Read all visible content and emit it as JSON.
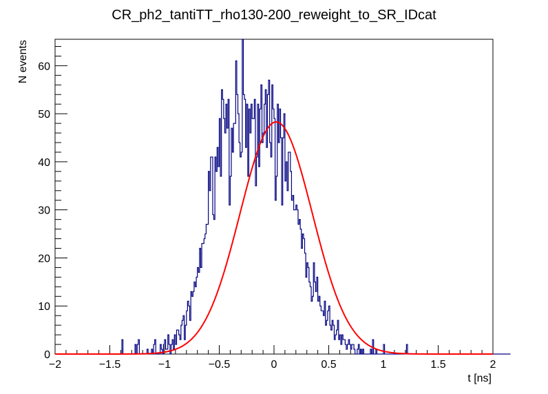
{
  "chart_data": {
    "type": "histogram",
    "title": "CR_ph2_tantiTT_rho130-200_reweight_to_SR_IDcat",
    "xlabel": "t [ns]",
    "ylabel": "N events",
    "xlim": [
      -2,
      2
    ],
    "ylim": [
      0,
      65.5
    ],
    "x_ticks": [
      "−2",
      "−1.5",
      "−1",
      "−0.5",
      "0",
      "0.5",
      "1",
      "1.5",
      "2"
    ],
    "y_ticks": [
      "0",
      "10",
      "20",
      "30",
      "40",
      "50",
      "60"
    ],
    "x_tick_values": [
      -2,
      -1.5,
      -1,
      -0.5,
      0,
      0.5,
      1,
      1.5,
      2
    ],
    "y_tick_values": [
      0,
      10,
      20,
      30,
      40,
      50,
      60
    ],
    "bin_width": 0.01,
    "series": [
      {
        "name": "histogram",
        "color": "#000080",
        "bin_start": -2.0,
        "values": [
          0,
          0,
          0,
          0,
          0,
          0,
          0,
          0,
          0,
          0,
          0,
          0,
          0,
          0,
          0,
          0,
          0,
          0,
          0,
          0,
          0,
          0,
          0,
          0,
          0,
          0,
          0,
          0,
          0,
          0,
          0,
          0,
          0,
          0,
          0,
          0,
          0,
          0,
          0,
          0,
          0,
          0,
          0,
          0,
          0,
          0,
          0,
          0,
          0,
          0,
          0,
          0,
          0,
          0,
          0,
          0,
          0,
          0,
          0,
          0,
          0,
          3,
          0,
          0,
          0,
          0,
          0,
          0,
          0,
          0,
          0,
          0,
          0,
          2,
          0,
          2,
          3,
          0,
          0,
          0,
          0,
          0,
          0,
          0,
          1,
          0,
          0,
          0,
          1,
          0,
          2,
          3,
          0,
          0,
          0,
          0,
          2,
          1,
          0,
          2,
          3,
          1,
          1,
          4,
          2,
          0,
          2,
          3,
          1,
          4,
          2,
          5,
          5,
          4,
          3,
          6,
          7,
          8,
          3,
          6,
          9,
          11,
          10,
          7,
          13,
          12,
          13,
          15,
          14,
          16,
          18,
          17,
          22,
          18,
          23,
          23,
          24,
          25,
          27,
          27,
          38,
          34,
          41,
          41,
          29,
          28,
          41,
          38,
          43,
          39,
          49,
          37,
          55,
          53,
          49,
          46,
          52,
          47,
          53,
          31,
          37,
          47,
          42,
          48,
          48,
          61,
          54,
          50,
          44,
          41,
          42,
          66,
          54,
          53,
          43,
          52,
          37,
          51,
          46,
          52,
          49,
          49,
          53,
          35,
          41,
          52,
          39,
          51,
          56,
          44,
          46,
          52,
          55,
          43,
          54,
          57,
          44,
          41,
          56,
          51,
          49,
          32,
          37,
          52,
          44,
          51,
          45,
          31,
          45,
          50,
          36,
          40,
          34,
          42,
          42,
          38,
          32,
          33,
          30,
          30,
          31,
          30,
          27,
          28,
          26,
          22,
          25,
          24,
          21,
          16,
          19,
          18,
          15,
          14,
          11,
          12,
          19,
          15,
          13,
          16,
          11,
          12,
          10,
          9,
          9,
          8,
          11,
          6,
          7,
          9,
          10,
          6,
          5,
          7,
          6,
          3,
          4,
          5,
          7,
          3,
          4,
          2,
          4,
          3,
          3,
          2,
          1,
          2,
          3,
          2,
          1,
          2,
          2,
          1,
          0,
          0,
          1,
          2,
          0,
          1,
          0,
          1,
          0,
          0,
          0,
          0,
          0,
          0,
          1,
          0,
          3,
          0,
          0,
          1,
          0,
          0,
          0,
          0,
          0,
          0,
          2,
          0,
          0,
          0,
          0,
          0,
          0,
          0,
          0,
          0,
          0,
          0,
          0,
          0,
          0,
          0,
          0,
          0,
          0,
          0,
          0,
          2,
          0,
          0,
          0,
          0,
          0,
          0,
          0,
          0,
          0,
          0,
          0,
          0,
          0,
          0,
          0,
          0,
          0,
          0,
          0,
          0,
          0,
          0,
          0,
          0,
          0,
          0,
          0,
          0,
          0,
          0,
          0,
          0,
          0,
          0,
          0,
          0,
          0,
          0,
          0,
          0,
          0,
          0,
          0,
          0,
          0,
          0,
          0,
          0,
          0,
          0,
          0,
          0,
          0,
          0,
          0,
          0,
          0,
          0,
          0,
          0,
          0,
          0,
          0,
          0,
          0,
          0,
          0,
          0,
          0,
          0,
          0,
          0,
          0,
          0,
          0,
          0,
          0,
          0,
          0,
          0,
          0,
          0,
          0,
          0,
          0,
          0,
          0,
          0,
          0,
          0,
          0,
          0,
          0,
          0
        ]
      },
      {
        "name": "gaussian-fit",
        "type": "line",
        "color": "#ff0000",
        "amplitude": 48.3,
        "mean": 0.02,
        "sigma": 0.33
      }
    ]
  }
}
